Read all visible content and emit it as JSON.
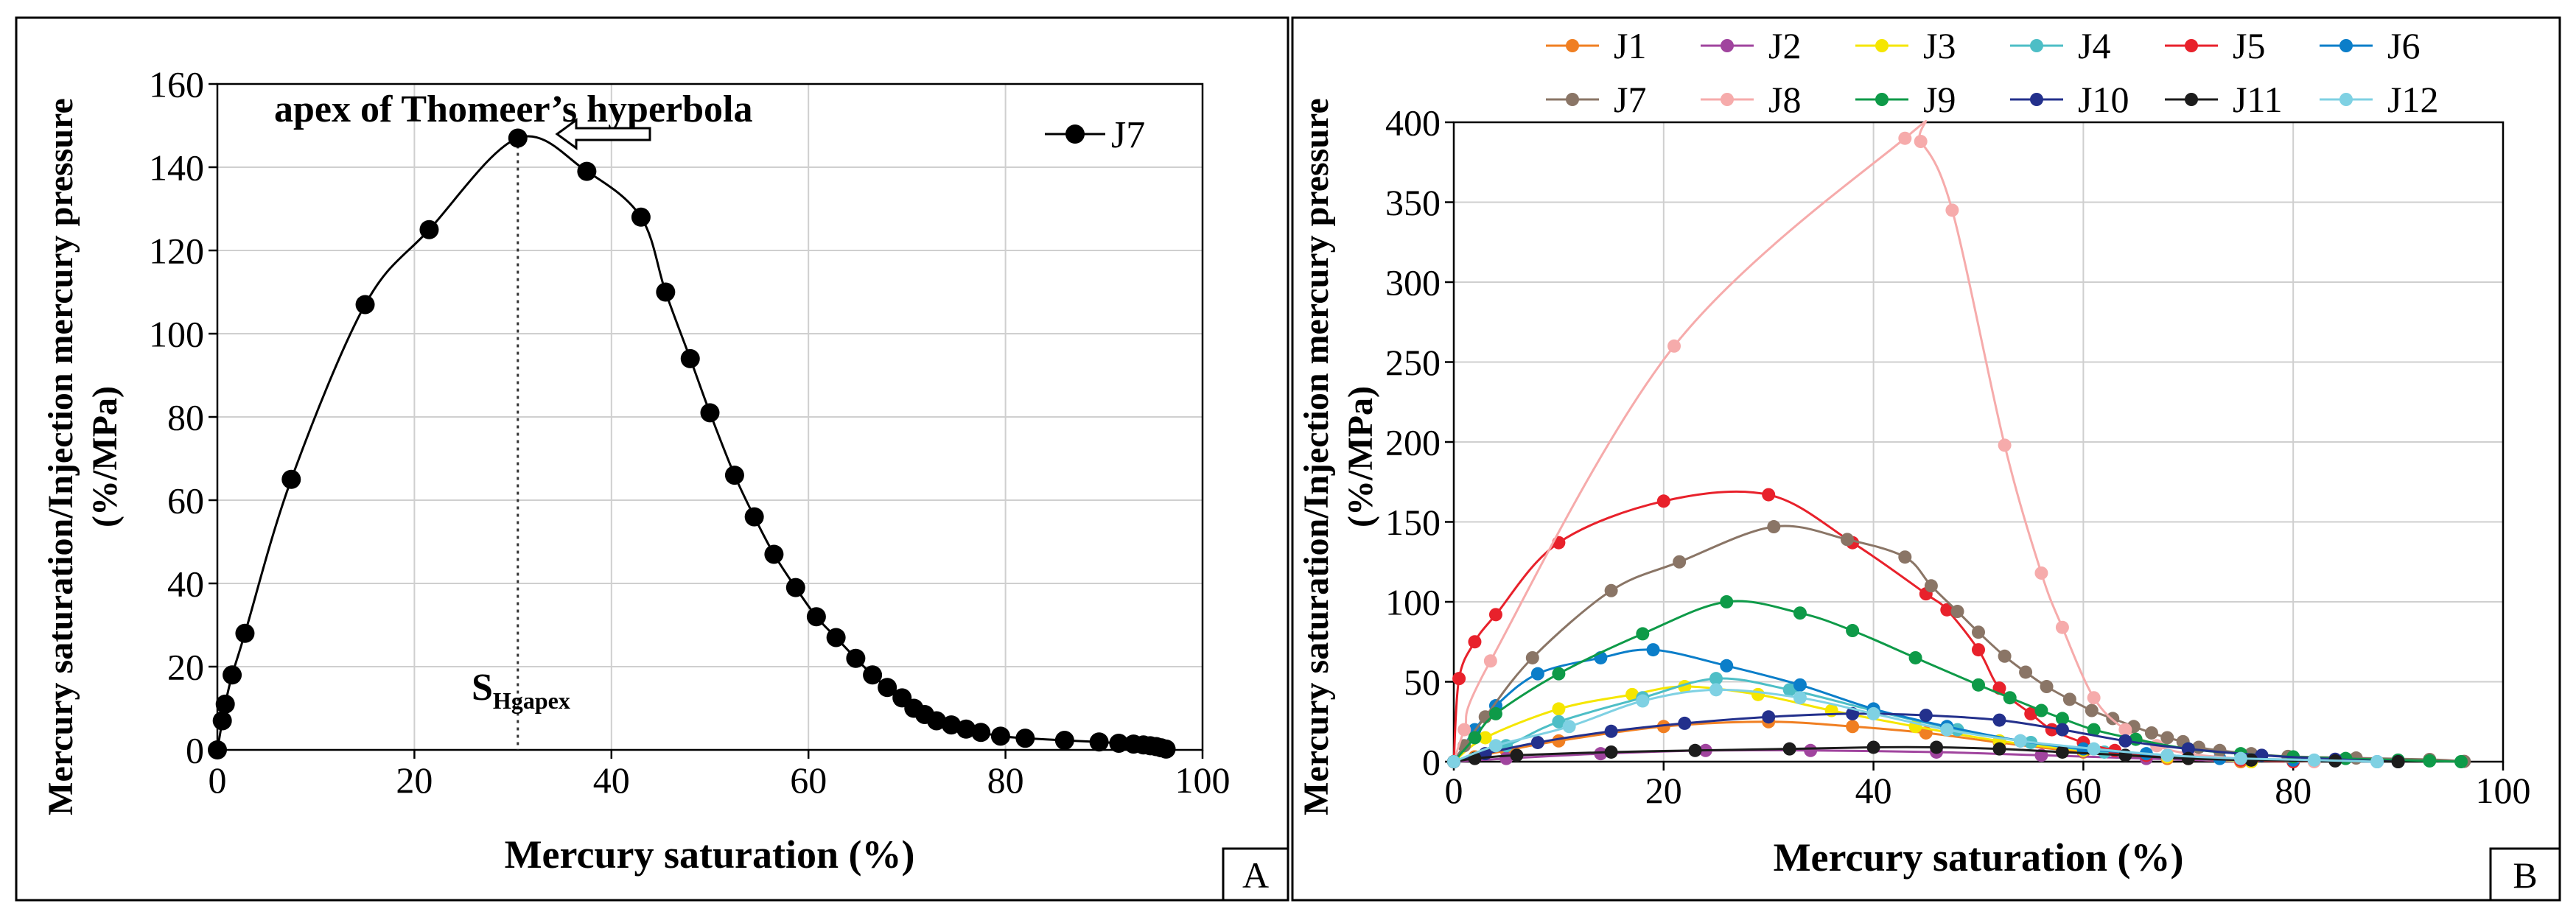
{
  "chart_data": [
    {
      "panel_label": "A",
      "type": "line",
      "xlabel": "Mercury saturation (%)",
      "ylabel_line1": "Mercury saturation/Injection mercury pressure",
      "ylabel_line2": "(%/MPa)",
      "xlim": [
        0,
        100
      ],
      "ylim": [
        0,
        160
      ],
      "xticks": [
        0,
        20,
        40,
        60,
        80,
        100
      ],
      "yticks": [
        0,
        20,
        40,
        60,
        80,
        100,
        120,
        140,
        160
      ],
      "grid": true,
      "legend_position": "top-right",
      "annotation": "apex of Thomeer’s hyperbola",
      "marker_label_main": "S",
      "marker_label_sub": "Hgapex",
      "apex_x": 30.5,
      "series": [
        {
          "name": "J7",
          "color": "#000000",
          "x": [
            0,
            0.5,
            0.8,
            1.5,
            2.8,
            7.5,
            15,
            21.5,
            30.5,
            37.5,
            43,
            45.5,
            48,
            50,
            52.5,
            54.5,
            56.5,
            58.7,
            60.8,
            62.8,
            64.8,
            66.5,
            68,
            69.5,
            70.7,
            71.8,
            73,
            74.5,
            76,
            77.5,
            79.5,
            82,
            86,
            89.5,
            91.5,
            93,
            94,
            94.7,
            95.3,
            95.8,
            96.3
          ],
          "y": [
            0,
            7,
            11,
            18,
            28,
            65,
            107,
            125,
            147,
            139,
            128,
            110,
            94,
            81,
            66,
            56,
            47,
            39,
            32,
            27,
            22,
            18,
            15,
            12.5,
            10,
            8.5,
            7,
            6,
            5,
            4.2,
            3.3,
            2.8,
            2.3,
            1.9,
            1.6,
            1.4,
            1.2,
            1.0,
            0.8,
            0.5,
            0.2
          ]
        }
      ]
    },
    {
      "panel_label": "B",
      "type": "line",
      "xlabel": "Mercury saturation (%)",
      "ylabel_line1": "Mercury saturation/Injection mercury pressure",
      "ylabel_line2": "(%/MPa)",
      "xlim": [
        0,
        100
      ],
      "ylim": [
        0,
        400
      ],
      "xticks": [
        0,
        20,
        40,
        60,
        80,
        100
      ],
      "yticks": [
        0,
        50,
        100,
        150,
        200,
        250,
        300,
        350,
        400
      ],
      "grid": true,
      "legend_position": "top",
      "series": [
        {
          "name": "J1",
          "color": "#f07f22",
          "x": [
            0,
            2,
            5,
            10,
            20,
            30,
            38,
            45,
            52,
            60,
            68,
            75
          ],
          "y": [
            0,
            3,
            7,
            13,
            22,
            25,
            22,
            18,
            12,
            6,
            2,
            0
          ]
        },
        {
          "name": "J2",
          "color": "#a0449e",
          "x": [
            0,
            5,
            14,
            24,
            34,
            46,
            56,
            66,
            76
          ],
          "y": [
            0,
            2,
            5,
            7,
            7,
            6,
            4,
            2,
            0
          ]
        },
        {
          "name": "J3",
          "color": "#f5e600",
          "x": [
            0,
            3,
            10,
            17,
            22,
            29,
            36,
            44,
            52,
            60,
            68,
            76
          ],
          "y": [
            0,
            15,
            33,
            42,
            47,
            42,
            32,
            22,
            13,
            7,
            3,
            0
          ]
        },
        {
          "name": "J4",
          "color": "#4dbec6",
          "x": [
            0,
            5,
            10,
            18,
            25,
            32,
            40,
            48,
            55,
            62,
            70,
            80
          ],
          "y": [
            0,
            10,
            25,
            40,
            52,
            45,
            32,
            20,
            12,
            6,
            2,
            0
          ]
        },
        {
          "name": "J5",
          "color": "#e8212b",
          "x": [
            0,
            0.5,
            2,
            4,
            10,
            20,
            30,
            38,
            45,
            47,
            50,
            52,
            55,
            57,
            60,
            63,
            66,
            70,
            75,
            80
          ],
          "y": [
            0,
            52,
            75,
            92,
            137,
            163,
            167,
            137,
            105,
            95,
            70,
            46,
            30,
            20,
            12,
            7,
            4,
            2,
            1,
            0
          ]
        },
        {
          "name": "J6",
          "color": "#0b7ec9",
          "x": [
            0,
            2,
            4,
            8,
            14,
            19,
            26,
            33,
            40,
            47,
            54,
            60,
            66,
            73,
            80,
            88
          ],
          "y": [
            0,
            20,
            35,
            55,
            65,
            70,
            60,
            48,
            33,
            22,
            13,
            8,
            5,
            2,
            1,
            0
          ]
        },
        {
          "name": "J7",
          "color": "#8a7566",
          "x": [
            0,
            1,
            3,
            7.5,
            15,
            21.5,
            30.5,
            37.5,
            43,
            45.5,
            48,
            50,
            52.5,
            54.5,
            56.5,
            58.7,
            60.8,
            62.8,
            64.8,
            66.5,
            68,
            69.5,
            71,
            73,
            76,
            79.5,
            86,
            93,
            96.3
          ],
          "y": [
            0,
            10,
            28,
            65,
            107,
            125,
            147,
            139,
            128,
            110,
            94,
            81,
            66,
            56,
            47,
            39,
            32,
            27,
            22,
            18,
            15,
            12.5,
            9,
            7,
            5,
            3.3,
            2.3,
            1.4,
            0.2
          ]
        },
        {
          "name": "J8",
          "color": "#f6abab",
          "x": [
            0,
            1,
            3.5,
            21,
            43,
            44.5,
            47.5,
            52.5,
            56,
            58,
            61,
            64,
            67,
            70,
            75,
            82
          ],
          "y": [
            0,
            20,
            63,
            260,
            390,
            388,
            345,
            198,
            118,
            84,
            40,
            20,
            10,
            5,
            2,
            0
          ]
        },
        {
          "name": "J9",
          "color": "#0e9a48",
          "x": [
            0,
            2,
            4,
            10,
            18,
            26,
            33,
            38,
            44,
            50,
            53,
            56,
            58,
            61,
            65,
            70,
            75,
            80,
            85,
            90,
            93,
            96
          ],
          "y": [
            0,
            15,
            30,
            55,
            80,
            100,
            93,
            82,
            65,
            48,
            40,
            32,
            27,
            20,
            14,
            8,
            5,
            3,
            2,
            1,
            0.5,
            0
          ]
        },
        {
          "name": "J10",
          "color": "#23308c",
          "x": [
            0,
            3,
            8,
            15,
            22,
            30,
            38,
            45,
            52,
            58,
            64,
            70,
            77,
            84,
            90
          ],
          "y": [
            0,
            5,
            12,
            19,
            24,
            28,
            30,
            29,
            26,
            20,
            13,
            8,
            4,
            1.5,
            0
          ]
        },
        {
          "name": "J11",
          "color": "#1c1c1c",
          "x": [
            0,
            2,
            6,
            15,
            23,
            32,
            40,
            46,
            52,
            58,
            64,
            70,
            76,
            84,
            90
          ],
          "y": [
            0,
            2,
            4,
            6,
            7,
            8,
            9,
            9,
            8,
            6,
            4,
            2,
            1,
            0.5,
            0
          ]
        },
        {
          "name": "J12",
          "color": "#7fd1e3",
          "x": [
            0,
            4,
            11,
            18,
            25,
            33,
            40,
            47,
            54,
            61,
            68,
            75,
            82,
            88
          ],
          "y": [
            0,
            10,
            22,
            38,
            45,
            40,
            30,
            20,
            13,
            8,
            4,
            2,
            1,
            0
          ]
        }
      ]
    }
  ]
}
